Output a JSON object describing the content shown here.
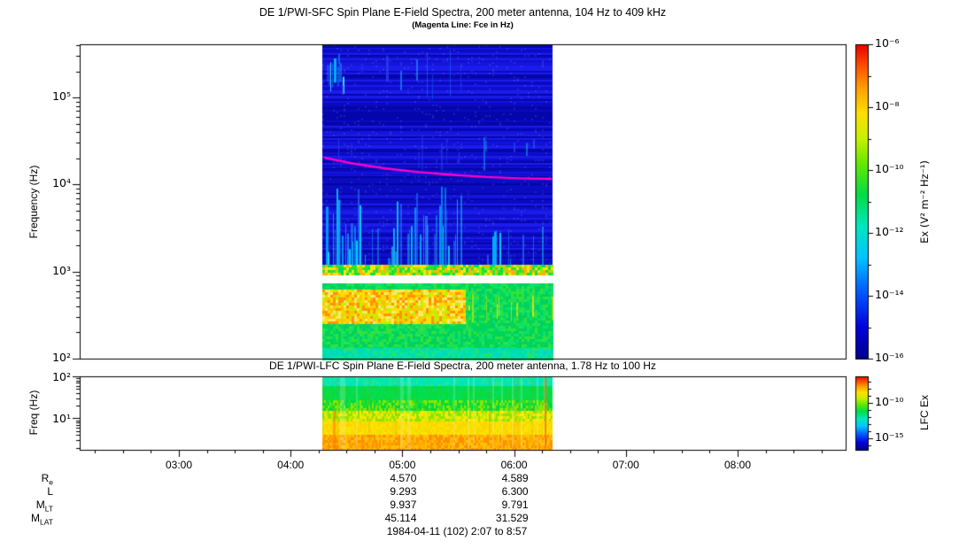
{
  "chart_data": [
    {
      "type": "heatmap",
      "instrument": "DE 1/PWI-SFC",
      "title": "DE 1/PWI-SFC  Spin Plane E-Field Spectra, 200 meter antenna, 104 Hz to 409 kHz",
      "subtitle": "(Magenta Line: Fce in Hz)",
      "ylabel": "Frequency (Hz)",
      "yscale": "log",
      "ylim_hz": [
        100,
        409000
      ],
      "ytick_labels": [
        "10⁵",
        "10⁴",
        "10³",
        "10²"
      ],
      "ytick_logf": [
        5,
        4,
        3,
        2
      ],
      "time_start": "02:07",
      "time_end": "08:57",
      "xtick_labels": [
        "03:00",
        "04:00",
        "05:00",
        "06:00",
        "07:00",
        "08:00"
      ],
      "xtick_hours": [
        3,
        4,
        5,
        6,
        7,
        8
      ],
      "data_start_hour": 4.285,
      "data_end_hour": 6.345,
      "colorbar": {
        "label": "Ex (V² m⁻² Hz⁻¹)",
        "tick_labels": [
          "10⁻⁶",
          "10⁻⁸",
          "10⁻¹⁰",
          "10⁻¹²",
          "10⁻¹⁴",
          "10⁻¹⁶"
        ],
        "tick_exponents": [
          -6,
          -8,
          -10,
          -12,
          -14,
          -16
        ],
        "log_range": [
          -16,
          -6
        ],
        "stops": [
          [
            0,
            "#00008a"
          ],
          [
            0.1,
            "#0000e0"
          ],
          [
            0.22,
            "#0060ff"
          ],
          [
            0.32,
            "#00c4ff"
          ],
          [
            0.42,
            "#00e8c0"
          ],
          [
            0.52,
            "#00dc48"
          ],
          [
            0.62,
            "#66e800"
          ],
          [
            0.7,
            "#c8f000"
          ],
          [
            0.78,
            "#ffe000"
          ],
          [
            0.86,
            "#ffa000"
          ],
          [
            0.93,
            "#ff5000"
          ],
          [
            1,
            "#e60000"
          ]
        ]
      },
      "fce_line_color": "#ff00cc",
      "fce_line_hz": [
        [
          4.3,
          20400
        ],
        [
          4.55,
          17500
        ],
        [
          4.85,
          15300
        ],
        [
          5.15,
          13900
        ],
        [
          5.45,
          12900
        ],
        [
          5.75,
          12200
        ],
        [
          6.05,
          11800
        ],
        [
          6.34,
          11600
        ]
      ],
      "regions": [
        {
          "name": "upper-blue-base",
          "logf": [
            3.08,
            5.611
          ],
          "style": "hstripe",
          "colors": [
            "#0a0ac4",
            "#1414dc",
            "#0606a8",
            "#1c1cea",
            "#0e0ed0"
          ]
        },
        {
          "name": "dark-band-high",
          "logf": [
            4.7,
            4.94
          ],
          "style": "hstripe",
          "colors": [
            "#00008e",
            "#0505ac",
            "#0a0ac0"
          ]
        },
        {
          "name": "dark-band-mid",
          "logf": [
            3.93,
            4.1
          ],
          "style": "hstripe",
          "colors": [
            "#0404a2",
            "#0b0bc2"
          ]
        },
        {
          "name": "cyan-patch",
          "logf": [
            5.02,
            5.45
          ],
          "t": [
            4.31,
            4.47
          ],
          "style": "vstreak",
          "from": "full",
          "density": 0.55,
          "colors": [
            "#00c8ff",
            "#55e6ff",
            "#1a6cf0",
            "#00a0ff"
          ]
        },
        {
          "name": "upper-faint-streaks",
          "logf": [
            4.95,
            5.55
          ],
          "style": "vstreak",
          "from": "full",
          "density": 0.1,
          "colors": [
            "#2a3cee",
            "#1d7cf2"
          ]
        },
        {
          "name": "mid-faint-streaks",
          "logf": [
            4.15,
            4.65
          ],
          "style": "vstreak",
          "from": "full",
          "density": 0.07,
          "colors": [
            "#2a3cee",
            "#18a0f0"
          ]
        },
        {
          "name": "chorus-streaks",
          "logf": [
            3.08,
            3.98
          ],
          "style": "vstreak",
          "from": "bottom",
          "density": 0.22,
          "colors": [
            "#00b8ff",
            "#00e4ff",
            "#2a7cff",
            "#10d0f0"
          ],
          "bursts": [
            [
              4.3,
              4.62
            ],
            [
              4.93,
              5.22
            ],
            [
              5.27,
              5.52
            ]
          ]
        },
        {
          "name": "green-top-band",
          "logf": [
            2.955,
            3.08
          ],
          "style": "noise",
          "colors": [
            "#00e14e",
            "#8af000",
            "#ffe400",
            "#ffb400",
            "#2ae23c"
          ]
        },
        {
          "name": "white-gap",
          "logf": [
            2.865,
            2.955
          ],
          "style": "solid",
          "colors": [
            "#ffffff"
          ]
        },
        {
          "name": "lower-green-base",
          "logf": [
            2.0,
            2.865
          ],
          "style": "noise",
          "colors": [
            "#00d855",
            "#0ee068",
            "#33e23c",
            "#00cf62"
          ]
        },
        {
          "name": "yellow-orange-blob",
          "logf": [
            2.4,
            2.79
          ],
          "t": [
            4.285,
            5.56
          ],
          "style": "noise",
          "colors": [
            "#ffdf00",
            "#ffc400",
            "#ff9300",
            "#c8ec00",
            "#ffe86a"
          ]
        },
        {
          "name": "yellow-speckle-right",
          "logf": [
            2.42,
            2.75
          ],
          "t": [
            5.56,
            6.34
          ],
          "style": "vstreak",
          "from": "full",
          "density": 0.12,
          "colors": [
            "#d8ee00",
            "#ffe400"
          ]
        },
        {
          "name": "bottom-cyan-rows",
          "logf": [
            2.0,
            2.12
          ],
          "style": "noise",
          "colors": [
            "#00e09a",
            "#00d8c4",
            "#2ae070",
            "#00e4b0"
          ]
        }
      ]
    },
    {
      "type": "heatmap",
      "instrument": "DE 1/PWI-LFC",
      "title": "DE 1/PWI-LFC  Spin Plane E-Field Spectra, 200 meter antenna, 1.78 Hz to 100 Hz",
      "ylabel": "Freq (Hz)",
      "yscale": "log",
      "ylim_hz": [
        1.78,
        100
      ],
      "ytick_labels": [
        "10²",
        "10¹"
      ],
      "ytick_logf": [
        2,
        1
      ],
      "data_start_hour": 4.285,
      "data_end_hour": 6.345,
      "colorbar": {
        "label": "LFC Ex",
        "tick_labels": [
          "10⁻¹⁰",
          "10⁻¹⁵"
        ],
        "tick_exponents": [
          -10,
          -15
        ]
      },
      "bands": [
        {
          "logf": [
            1.76,
            2.0
          ],
          "colors": [
            "#00e8ac",
            "#00e4c4",
            "#20e890"
          ]
        },
        {
          "logf": [
            1.44,
            1.76
          ],
          "colors": [
            "#00de4a",
            "#00e060",
            "#12d838"
          ]
        },
        {
          "logf": [
            1.18,
            1.44
          ],
          "colors": [
            "#2ce028",
            "#00d844",
            "#86e800"
          ]
        },
        {
          "logf": [
            0.92,
            1.18
          ],
          "colors": [
            "#c6ec00",
            "#ffe600",
            "#8ce400"
          ]
        },
        {
          "logf": [
            0.6,
            0.92
          ],
          "colors": [
            "#ffe200",
            "#ffd200",
            "#f0e000"
          ]
        },
        {
          "logf": [
            0.25,
            0.6
          ],
          "colors": [
            "#ffaa00",
            "#ff8e00",
            "#ffc400"
          ]
        }
      ],
      "streak_line_hour": 6.27
    }
  ],
  "annotations": {
    "rows": [
      {
        "label_main": "R",
        "label_sub": "e",
        "values": [
          "4.570",
          "4.589"
        ]
      },
      {
        "label_main": "L",
        "label_sub": "",
        "values": [
          "9.293",
          "6.300"
        ]
      },
      {
        "label_main": "M",
        "label_sub": "LT",
        "values": [
          "9.937",
          "9.791"
        ]
      },
      {
        "label_main": "M",
        "label_sub": "LAT",
        "values": [
          "45.114",
          "31.529"
        ]
      }
    ],
    "value_column_hours": [
      5,
      6
    ],
    "footer": "1984-04-11 (102) 2:07 to 8:57"
  }
}
